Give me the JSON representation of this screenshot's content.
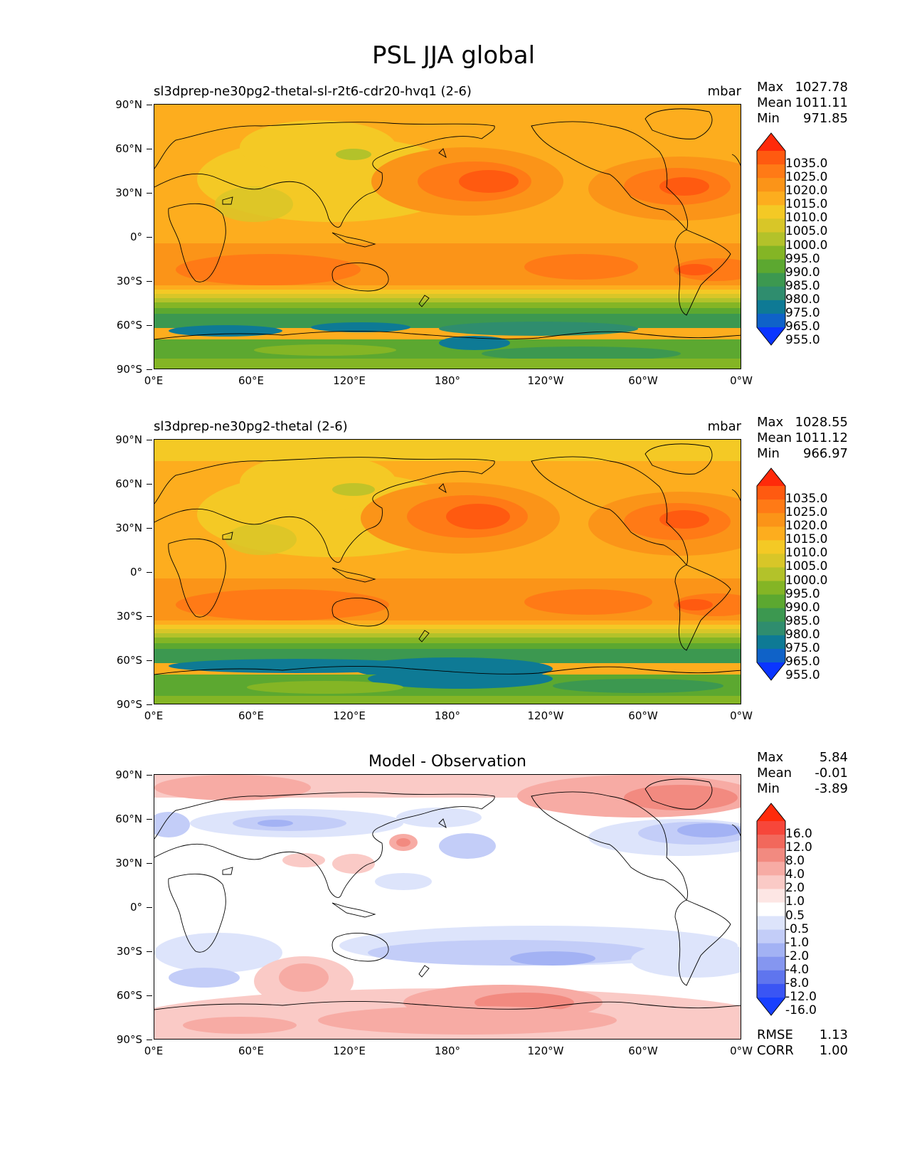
{
  "figure_title": "PSL JJA global",
  "panels": [
    {
      "title": "sl3dprep-ne30pg2-thetal-sl-r2t6-cdr20-hvq1 (2-6)",
      "units": "mbar",
      "stats": {
        "max_label": "Max",
        "max": "1027.78",
        "mean_label": "Mean",
        "mean": "1011.11",
        "min_label": "Min",
        "min": "971.85"
      }
    },
    {
      "title": "sl3dprep-ne30pg2-thetal (2-6)",
      "units": "mbar",
      "stats": {
        "max_label": "Max",
        "max": "1028.55",
        "mean_label": "Mean",
        "mean": "1011.12",
        "min_label": "Min",
        "min": "966.97"
      }
    },
    {
      "title": "Model - Observation",
      "units": "",
      "stats": {
        "max_label": "Max",
        "max": "5.84",
        "mean_label": "Mean",
        "mean": "-0.01",
        "min_label": "Min",
        "min": "-3.89"
      }
    }
  ],
  "y_ticks": [
    "90°N",
    "60°N",
    "30°N",
    "0°",
    "30°S",
    "60°S",
    "90°S"
  ],
  "x_ticks": [
    "0°E",
    "60°E",
    "120°E",
    "180°",
    "120°W",
    "60°W",
    "0°W"
  ],
  "colorbar_psl": {
    "labels": [
      "1035.0",
      "1025.0",
      "1020.0",
      "1015.0",
      "1010.0",
      "1005.0",
      "1000.0",
      "995.0",
      "990.0",
      "985.0",
      "980.0",
      "975.0",
      "965.0",
      "955.0"
    ],
    "colors": [
      "#ff2a0a",
      "#ff5a10",
      "#ff7a16",
      "#fb9418",
      "#fdad1e",
      "#f4c925",
      "#d8c628",
      "#b3c22a",
      "#84b525",
      "#5ca830",
      "#3c9850",
      "#2f8d6e",
      "#0e7a95",
      "#0f62c8",
      "#0a35ff"
    ]
  },
  "colorbar_diff": {
    "labels": [
      "16.0",
      "12.0",
      "8.0",
      "4.0",
      "2.0",
      "1.0",
      "0.5",
      "-0.5",
      "-1.0",
      "-2.0",
      "-4.0",
      "-8.0",
      "-12.0",
      "-16.0"
    ],
    "colors": [
      "#ff2a0a",
      "#f7463a",
      "#f2685c",
      "#f28a80",
      "#f7aba4",
      "#facac6",
      "#fde6e4",
      "#ffffff",
      "#dde4fb",
      "#c3cdf8",
      "#a3b2f4",
      "#8596f0",
      "#5f75ee",
      "#3a55f4",
      "#1840ff"
    ]
  },
  "diff_summary": {
    "rmse_label": "RMSE",
    "rmse": "1.13",
    "corr_label": "CORR",
    "corr": "1.00"
  }
}
